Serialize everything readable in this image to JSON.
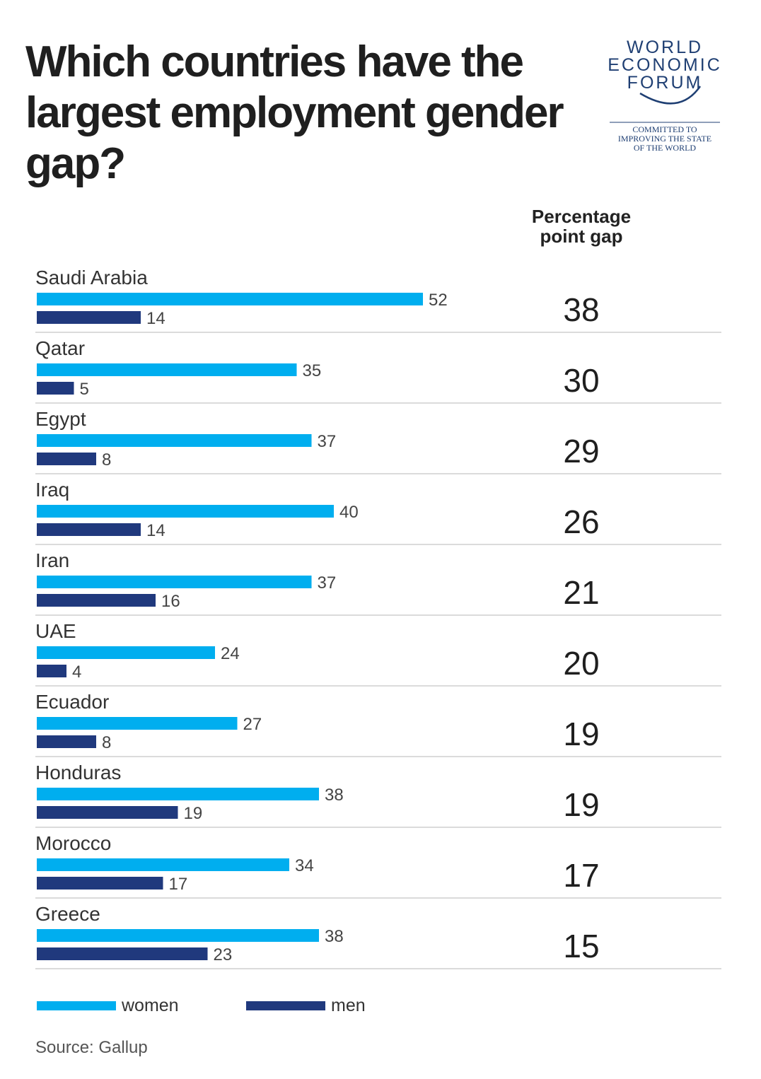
{
  "title": "Which countries have the largest employment gender gap?",
  "logo": {
    "lines": [
      "WORLD",
      "ECONOMIC",
      "FORUM"
    ],
    "tagline": [
      "COMMITTED TO",
      "IMPROVING THE STATE",
      "OF THE WORLD"
    ],
    "color": "#1f3f73"
  },
  "gap_header": "Percentage point gap",
  "legend": {
    "women": "women",
    "men": "men"
  },
  "source": "Source: Gallup",
  "colors": {
    "women": "#00aeef",
    "men": "#20397d",
    "divider": "#cfcfcf"
  },
  "chart_data": {
    "type": "bar",
    "orientation": "horizontal",
    "categories": [
      "Saudi Arabia",
      "Qatar",
      "Egypt",
      "Iraq",
      "Iran",
      "UAE",
      "Ecuador",
      "Honduras",
      "Morocco",
      "Greece"
    ],
    "series": [
      {
        "name": "women",
        "values": [
          52,
          35,
          37,
          40,
          37,
          24,
          27,
          38,
          34,
          38
        ]
      },
      {
        "name": "men",
        "values": [
          14,
          5,
          8,
          14,
          16,
          4,
          8,
          19,
          17,
          23
        ]
      }
    ],
    "gap": [
      38,
      30,
      29,
      26,
      21,
      20,
      19,
      19,
      17,
      15
    ],
    "gap_label": "Percentage point gap",
    "grid": false,
    "legend_position": "bottom-left"
  }
}
